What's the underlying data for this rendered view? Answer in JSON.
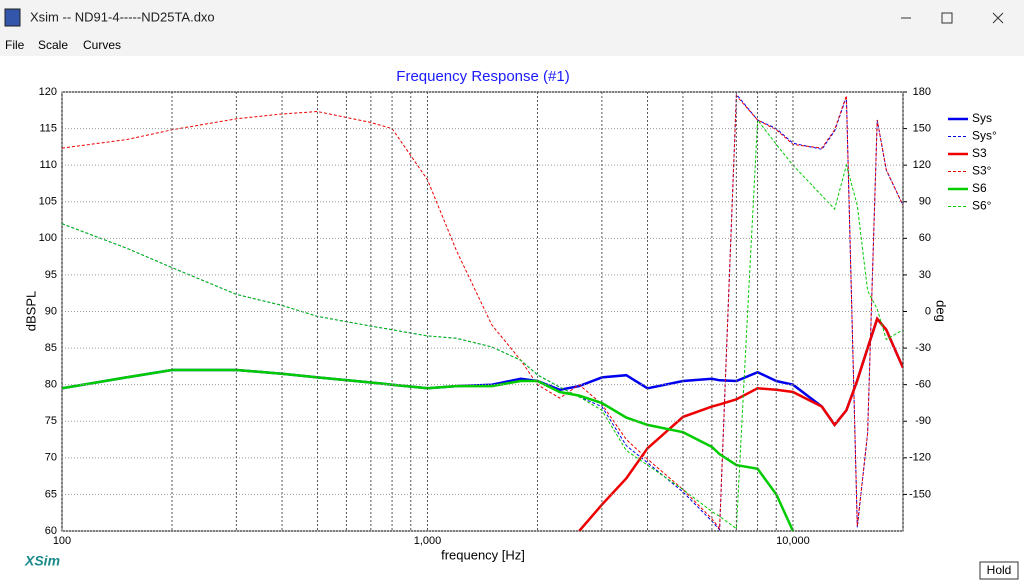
{
  "window": {
    "title": "Xsim -- ND91-4-----ND25TA.dxo"
  },
  "menu": [
    "File",
    "Scale",
    "Curves"
  ],
  "logo": "XSim",
  "button": "Hold",
  "chart_data": {
    "type": "line",
    "title": "Frequency Response (#1)",
    "x_label": "frequency [Hz]",
    "y_label": "dBSPL",
    "y2_label": "deg",
    "xscale": "log",
    "xlim": [
      100,
      20000
    ],
    "xticks": [
      100,
      {
        "value": 1000,
        "label": "1,000"
      },
      {
        "value": 10000,
        "label": "10,000"
      }
    ],
    "xminor_ticks": [
      200,
      300,
      400,
      500,
      600,
      700,
      800,
      900,
      2000,
      3000,
      4000,
      5000,
      6000,
      7000,
      8000,
      9000,
      20000
    ],
    "ylim": [
      60,
      120
    ],
    "yticks": [
      60,
      65,
      70,
      75,
      80,
      85,
      90,
      95,
      100,
      105,
      110,
      115,
      120
    ],
    "y2lim": [
      -180,
      180
    ],
    "y2ticks": [
      -150,
      -120,
      -90,
      -60,
      -30,
      0,
      30,
      60,
      90,
      120,
      150,
      180
    ],
    "grid": true,
    "legend": "right",
    "x": [
      100,
      150,
      200,
      300,
      400,
      500,
      700,
      800,
      1000,
      1200,
      1500,
      1800,
      2000,
      2300,
      2600,
      3000,
      3500,
      4000,
      5000,
      6000,
      6300,
      7000,
      8000,
      9000,
      10000,
      12000,
      13000,
      14000,
      15000,
      16000,
      17000,
      18000,
      20000
    ],
    "series": [
      {
        "name": "Sys",
        "color": "#0000ee",
        "style": "solid",
        "values": [
          79.5,
          81,
          82,
          82,
          81.5,
          81,
          80.3,
          80,
          79.5,
          79.8,
          80,
          80.8,
          80.5,
          79.3,
          79.8,
          81,
          81.3,
          79.5,
          80.5,
          80.8,
          80.6,
          80.5,
          81.7,
          80.5,
          80,
          77,
          74.5,
          76.5,
          80.6,
          85,
          89,
          87.5,
          82.3
        ]
      },
      {
        "name": "Sys°",
        "color": "#0000ee",
        "style": "dashed",
        "axis": "y2",
        "values": [
          72,
          52,
          36,
          14,
          5,
          -4,
          -12,
          -15,
          -20,
          -22,
          -29,
          -40,
          -52,
          -62,
          -70,
          -78,
          -110,
          -124,
          -148,
          -172,
          -179,
          178,
          157,
          150,
          138,
          133,
          148,
          176,
          -177,
          -100,
          157,
          116,
          87
        ]
      },
      {
        "name": "S3",
        "color": "#ee0000",
        "style": "solid",
        "values": [
          null,
          null,
          null,
          null,
          null,
          null,
          null,
          null,
          null,
          null,
          null,
          null,
          null,
          null,
          60,
          63.6,
          67.2,
          71.3,
          75.6,
          77,
          77.3,
          78,
          79.5,
          79.3,
          79,
          77,
          74.5,
          76.5,
          80.6,
          85,
          89,
          87.5,
          82.3
        ]
      },
      {
        "name": "S3°",
        "color": "#ee0000",
        "style": "dashed",
        "axis": "y2",
        "values": [
          134,
          141,
          149,
          158,
          162,
          164,
          155,
          150,
          108,
          50,
          -11,
          -40,
          -60,
          -71,
          -60,
          -76,
          -105,
          -121,
          -146,
          -170,
          -178,
          177,
          157,
          149,
          137,
          134,
          149,
          177,
          -176,
          -100,
          157,
          116,
          87
        ]
      },
      {
        "name": "S6",
        "color": "#00cc00",
        "style": "solid",
        "values": [
          79.5,
          81,
          82,
          82,
          81.5,
          81,
          80.3,
          80,
          79.5,
          79.8,
          79.8,
          80.5,
          80.5,
          79,
          78.5,
          77.5,
          75.5,
          74.5,
          73.5,
          71.5,
          70.5,
          69,
          68.5,
          65,
          60,
          null,
          null,
          null,
          null,
          null,
          null,
          null,
          null
        ]
      },
      {
        "name": "S6°",
        "color": "#00cc00",
        "style": "dashed",
        "axis": "y2",
        "values": [
          72,
          52,
          36,
          14,
          5,
          -4,
          -12,
          -15,
          -20,
          -22,
          -29,
          -40,
          -52,
          -62,
          -70,
          -81,
          -114,
          -126,
          -146,
          -164,
          -168,
          -178,
          157,
          137,
          120,
          95,
          84,
          120,
          87,
          17,
          2,
          -23,
          -15
        ]
      }
    ]
  }
}
